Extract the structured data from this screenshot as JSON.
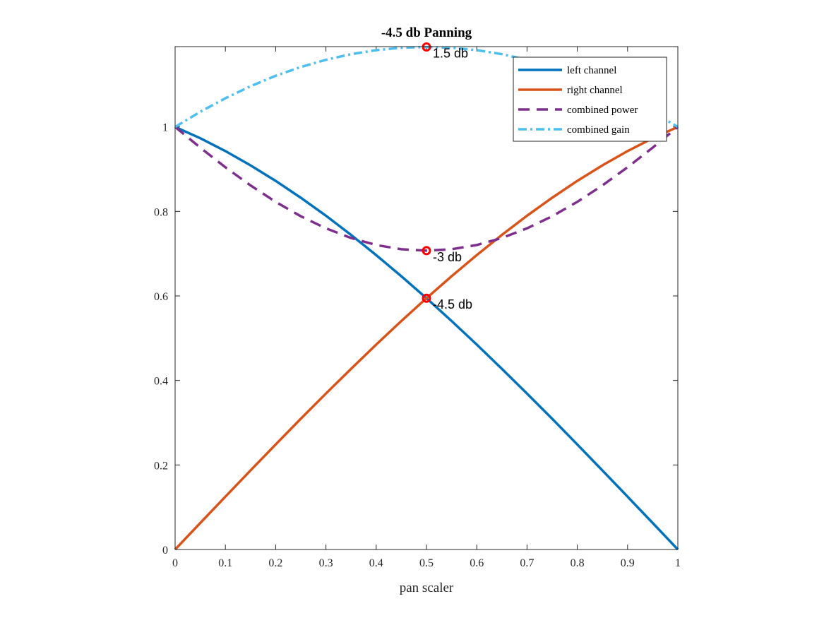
{
  "chart_data": {
    "type": "line",
    "title": "-4.5 db Panning",
    "xlabel": "pan scaler",
    "ylabel": "",
    "xlim": [
      0,
      1
    ],
    "ylim": [
      0,
      1.19
    ],
    "xticks": [
      "0",
      "0.1",
      "0.2",
      "0.3",
      "0.4",
      "0.5",
      "0.6",
      "0.7",
      "0.8",
      "0.9",
      "1"
    ],
    "yticks": [
      "0",
      "0.2",
      "0.4",
      "0.6",
      "0.8",
      "1"
    ],
    "grid": false,
    "legend_position": "top-right",
    "x": [
      0,
      0.05,
      0.1,
      0.15,
      0.2,
      0.25,
      0.3,
      0.35,
      0.4,
      0.45,
      0.5,
      0.55,
      0.6,
      0.65,
      0.7,
      0.75,
      0.8,
      0.85,
      0.9,
      0.95,
      1
    ],
    "series": [
      {
        "name": "left channel",
        "color": "#0072BD",
        "style": "solid",
        "values": [
          1,
          0.9732,
          0.9428,
          0.9091,
          0.8723,
          0.8324,
          0.7898,
          0.7445,
          0.6967,
          0.6467,
          0.5946,
          0.5406,
          0.4849,
          0.4276,
          0.369,
          0.3093,
          0.2486,
          0.1871,
          0.1251,
          0.0626,
          0
        ]
      },
      {
        "name": "right channel",
        "color": "#D95319",
        "style": "solid",
        "values": [
          0,
          0.0626,
          0.1251,
          0.1871,
          0.2486,
          0.3093,
          0.369,
          0.4276,
          0.4849,
          0.5406,
          0.5946,
          0.6467,
          0.6967,
          0.7445,
          0.7898,
          0.8324,
          0.8723,
          0.9091,
          0.9428,
          0.9732,
          1
        ]
      },
      {
        "name": "combined power",
        "color": "#7E2F8E",
        "style": "dashed",
        "values": [
          1,
          0.951,
          0.9046,
          0.8615,
          0.8227,
          0.7886,
          0.7599,
          0.7371,
          0.7205,
          0.7105,
          0.7071,
          0.7105,
          0.7205,
          0.7371,
          0.7599,
          0.7886,
          0.8227,
          0.8615,
          0.9046,
          0.951,
          1
        ]
      },
      {
        "name": "combined gain",
        "color": "#4DBEEE",
        "style": "dashdot",
        "values": [
          1,
          1.0358,
          1.0679,
          1.0962,
          1.1209,
          1.1417,
          1.1588,
          1.1721,
          1.1816,
          1.1873,
          1.1892,
          1.1873,
          1.1816,
          1.1721,
          1.1588,
          1.1417,
          1.1209,
          1.0962,
          1.0679,
          1.0358,
          1
        ]
      }
    ],
    "annotations": [
      {
        "x": 0.5,
        "y": 1.1892,
        "text": "1.5 db",
        "marker_color": "#FF0000"
      },
      {
        "x": 0.5,
        "y": 0.7071,
        "text": "-3 db",
        "marker_color": "#FF0000"
      },
      {
        "x": 0.5,
        "y": 0.5946,
        "text": "-4.5 db",
        "marker_color": "#FF0000"
      }
    ]
  }
}
